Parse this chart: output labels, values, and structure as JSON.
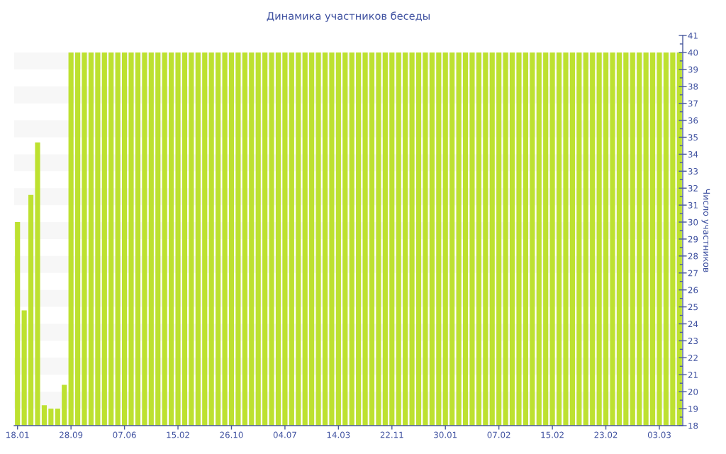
{
  "chart_data": {
    "type": "bar",
    "title": "Динамика участников беседы",
    "ylabel": "Число участников",
    "categories": [
      "18.01",
      null,
      null,
      null,
      null,
      null,
      null,
      null,
      "28.09",
      null,
      null,
      null,
      null,
      null,
      null,
      null,
      "07.06",
      null,
      null,
      null,
      null,
      null,
      null,
      null,
      "15.02",
      null,
      null,
      null,
      null,
      null,
      null,
      null,
      "26.10",
      null,
      null,
      null,
      null,
      null,
      null,
      null,
      "04.07",
      null,
      null,
      null,
      null,
      null,
      null,
      null,
      "14.03",
      null,
      null,
      null,
      null,
      null,
      null,
      null,
      "22.11",
      null,
      null,
      null,
      null,
      null,
      null,
      null,
      "30.01",
      null,
      null,
      null,
      null,
      null,
      null,
      null,
      "07.02",
      null,
      null,
      null,
      null,
      null,
      null,
      null,
      "15.02",
      null,
      null,
      null,
      null,
      null,
      null,
      null,
      "23.02",
      null,
      null,
      null,
      null,
      null,
      null,
      null,
      "03.03",
      null,
      null,
      null
    ],
    "values": [
      30,
      24.8,
      31.6,
      34.7,
      19.2,
      19.0,
      19.0,
      20.4,
      40,
      40,
      40,
      40,
      40,
      40,
      40,
      40,
      40,
      40,
      40,
      40,
      40,
      40,
      40,
      40,
      40,
      40,
      40,
      40,
      40,
      40,
      40,
      40,
      40,
      40,
      40,
      40,
      40,
      40,
      40,
      40,
      40,
      40,
      40,
      40,
      40,
      40,
      40,
      40,
      40,
      40,
      40,
      40,
      40,
      40,
      40,
      40,
      40,
      40,
      40,
      40,
      40,
      40,
      40,
      40,
      40,
      40,
      40,
      40,
      40,
      40,
      40,
      40,
      40,
      40,
      40,
      40,
      40,
      40,
      40,
      40,
      40,
      40,
      40,
      40,
      40,
      40,
      40,
      40,
      40,
      40,
      40,
      40,
      40,
      40,
      40,
      40,
      40,
      40,
      40,
      40
    ],
    "color": "#bde130",
    "ylim": [
      18,
      41
    ],
    "yticks": [
      18,
      19,
      20,
      21,
      22,
      23,
      24,
      25,
      26,
      27,
      28,
      29,
      30,
      31,
      32,
      33,
      34,
      35,
      36,
      37,
      38,
      39,
      40,
      41
    ],
    "bands": [
      {
        "axis": "y",
        "from": 19,
        "to": 20,
        "color": "#f7f7f7"
      },
      {
        "axis": "y",
        "from": 21,
        "to": 22,
        "color": "#f7f7f7"
      },
      {
        "axis": "y",
        "from": 23,
        "to": 24,
        "color": "#f7f7f7"
      },
      {
        "axis": "y",
        "from": 25,
        "to": 26,
        "color": "#f7f7f7"
      },
      {
        "axis": "y",
        "from": 27,
        "to": 28,
        "color": "#f7f7f7"
      },
      {
        "axis": "y",
        "from": 29,
        "to": 30,
        "color": "#f7f7f7"
      },
      {
        "axis": "y",
        "from": 31,
        "to": 32,
        "color": "#f7f7f7"
      },
      {
        "axis": "y",
        "from": 33,
        "to": 34,
        "color": "#f7f7f7"
      },
      {
        "axis": "y",
        "from": 35,
        "to": 36,
        "color": "#f7f7f7"
      },
      {
        "axis": "y",
        "from": 37,
        "to": 38,
        "color": "#f7f7f7"
      },
      {
        "axis": "y",
        "from": 39,
        "to": 40,
        "color": "#f7f7f7"
      }
    ]
  }
}
